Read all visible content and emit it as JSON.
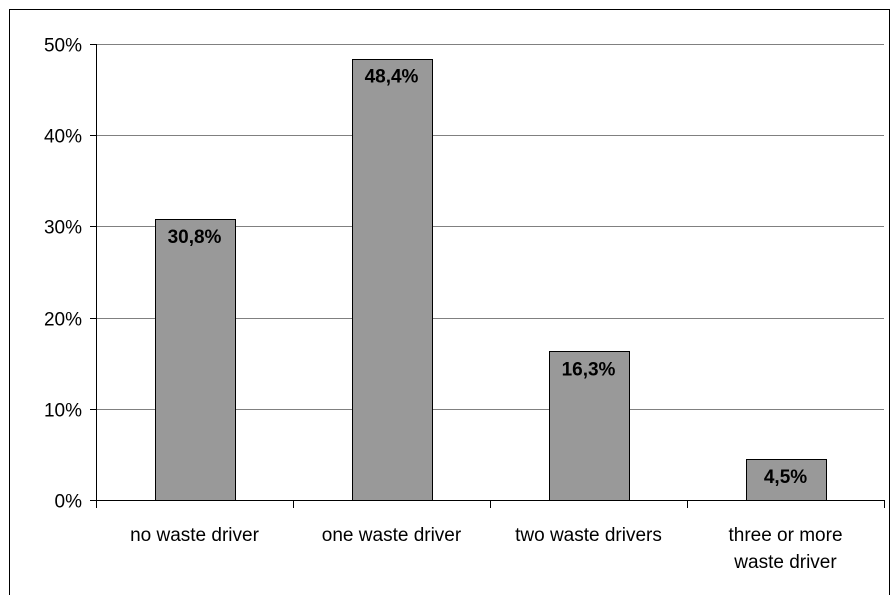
{
  "chart_data": {
    "type": "bar",
    "categories": [
      [
        "no waste driver"
      ],
      [
        "one waste driver"
      ],
      [
        "two waste drivers"
      ],
      [
        "three or more",
        "waste driver"
      ]
    ],
    "values": [
      30.8,
      48.4,
      16.3,
      4.5
    ],
    "data_labels": [
      "30,8%",
      "48,4%",
      "16,3%",
      "4,5%"
    ],
    "y_ticks": [
      {
        "value": 0,
        "label": "0%"
      },
      {
        "value": 10,
        "label": "10%"
      },
      {
        "value": 20,
        "label": "20%"
      },
      {
        "value": 30,
        "label": "30%"
      },
      {
        "value": 40,
        "label": "40%"
      },
      {
        "value": 50,
        "label": "50%"
      }
    ],
    "ylim": [
      0,
      50
    ],
    "grid": true,
    "legend": "none",
    "title": "",
    "xlabel": "",
    "ylabel": "",
    "bar_color": "#999999",
    "bar_border_color": "#000000",
    "grid_color": "#808080"
  }
}
